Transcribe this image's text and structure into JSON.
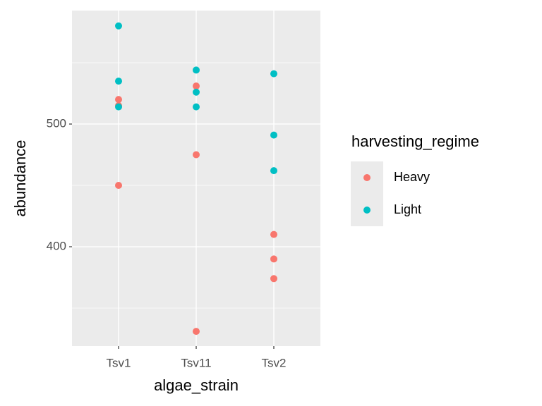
{
  "chart_data": {
    "type": "scatter",
    "x_label": "algae_strain",
    "y_label": "abundance",
    "legend_title": "harvesting_regime",
    "legend_position": "right",
    "grid": true,
    "categories": [
      "Tsv1",
      "Tsv11",
      "Tsv2"
    ],
    "ylim": [
      319,
      592.5
    ],
    "yticks": [
      400,
      500
    ],
    "minor_yticks": [
      350,
      450,
      550
    ],
    "series": [
      {
        "name": "Heavy",
        "color": "#F8766D",
        "x": [
          "Tsv1",
          "Tsv1",
          "Tsv1",
          "Tsv11",
          "Tsv11",
          "Tsv11",
          "Tsv2",
          "Tsv2",
          "Tsv2"
        ],
        "values": [
          520,
          515,
          450,
          531,
          475,
          331,
          410,
          390,
          374
        ]
      },
      {
        "name": "Light",
        "color": "#00BFC4",
        "x": [
          "Tsv1",
          "Tsv1",
          "Tsv1",
          "Tsv11",
          "Tsv11",
          "Tsv11",
          "Tsv2",
          "Tsv2",
          "Tsv2"
        ],
        "values": [
          580,
          535,
          514,
          544,
          526,
          514,
          541,
          491,
          462
        ]
      }
    ]
  }
}
